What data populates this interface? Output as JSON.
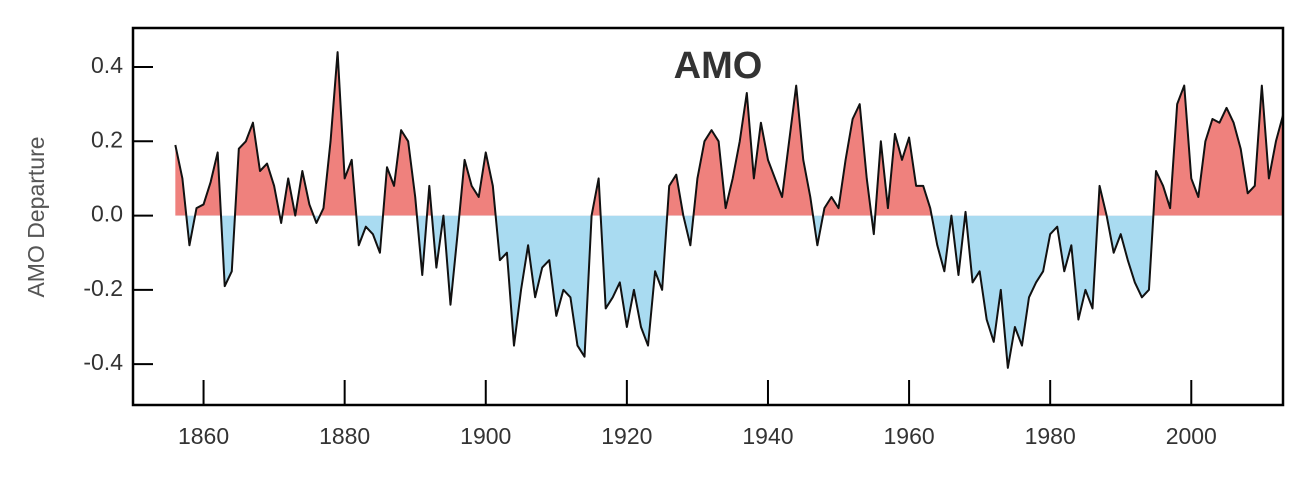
{
  "chart_data": {
    "type": "area",
    "title": "AMO",
    "y_label": "AMO Departure",
    "x": [
      1856,
      1857,
      1858,
      1859,
      1860,
      1861,
      1862,
      1863,
      1864,
      1865,
      1866,
      1867,
      1868,
      1869,
      1870,
      1871,
      1872,
      1873,
      1874,
      1875,
      1876,
      1877,
      1878,
      1879,
      1880,
      1881,
      1882,
      1883,
      1884,
      1885,
      1886,
      1887,
      1888,
      1889,
      1890,
      1891,
      1892,
      1893,
      1894,
      1895,
      1896,
      1897,
      1898,
      1899,
      1900,
      1901,
      1902,
      1903,
      1904,
      1905,
      1906,
      1907,
      1908,
      1909,
      1910,
      1911,
      1912,
      1913,
      1914,
      1915,
      1916,
      1917,
      1918,
      1919,
      1920,
      1921,
      1922,
      1923,
      1924,
      1925,
      1926,
      1927,
      1928,
      1929,
      1930,
      1931,
      1932,
      1933,
      1934,
      1935,
      1936,
      1937,
      1938,
      1939,
      1940,
      1941,
      1942,
      1943,
      1944,
      1945,
      1946,
      1947,
      1948,
      1949,
      1950,
      1951,
      1952,
      1953,
      1954,
      1955,
      1956,
      1957,
      1958,
      1959,
      1960,
      1961,
      1962,
      1963,
      1964,
      1965,
      1966,
      1967,
      1968,
      1969,
      1970,
      1971,
      1972,
      1973,
      1974,
      1975,
      1976,
      1977,
      1978,
      1979,
      1980,
      1981,
      1982,
      1983,
      1984,
      1985,
      1986,
      1987,
      1988,
      1989,
      1990,
      1991,
      1992,
      1993,
      1994,
      1995,
      1996,
      1997,
      1998,
      1999,
      2000,
      2001,
      2002,
      2003,
      2004,
      2005,
      2006,
      2007,
      2008,
      2009,
      2010,
      2011,
      2012,
      2013
    ],
    "values": [
      0.19,
      0.1,
      -0.08,
      0.02,
      0.03,
      0.09,
      0.17,
      -0.19,
      -0.15,
      0.18,
      0.2,
      0.25,
      0.12,
      0.14,
      0.08,
      -0.02,
      0.1,
      0.0,
      0.12,
      0.03,
      -0.02,
      0.02,
      0.2,
      0.44,
      0.1,
      0.15,
      -0.08,
      -0.03,
      -0.05,
      -0.1,
      0.13,
      0.08,
      0.23,
      0.2,
      0.05,
      -0.16,
      0.08,
      -0.14,
      0.0,
      -0.24,
      -0.05,
      0.15,
      0.08,
      0.05,
      0.17,
      0.08,
      -0.12,
      -0.1,
      -0.35,
      -0.2,
      -0.08,
      -0.22,
      -0.14,
      -0.12,
      -0.27,
      -0.2,
      -0.22,
      -0.35,
      -0.38,
      0.0,
      0.1,
      -0.25,
      -0.22,
      -0.18,
      -0.3,
      -0.2,
      -0.3,
      -0.35,
      -0.15,
      -0.2,
      0.08,
      0.11,
      0.0,
      -0.08,
      0.1,
      0.2,
      0.23,
      0.2,
      0.02,
      0.1,
      0.2,
      0.33,
      0.1,
      0.25,
      0.15,
      0.1,
      0.05,
      0.2,
      0.35,
      0.15,
      0.05,
      -0.08,
      0.02,
      0.05,
      0.02,
      0.15,
      0.26,
      0.3,
      0.1,
      -0.05,
      0.2,
      0.02,
      0.22,
      0.15,
      0.21,
      0.08,
      0.08,
      0.02,
      -0.08,
      -0.15,
      0.0,
      -0.16,
      0.01,
      -0.18,
      -0.15,
      -0.28,
      -0.34,
      -0.2,
      -0.41,
      -0.3,
      -0.35,
      -0.22,
      -0.18,
      -0.15,
      -0.05,
      -0.03,
      -0.15,
      -0.08,
      -0.28,
      -0.2,
      -0.25,
      0.08,
      0.0,
      -0.1,
      -0.05,
      -0.12,
      -0.18,
      -0.22,
      -0.2,
      0.12,
      0.08,
      0.02,
      0.3,
      0.35,
      0.1,
      0.05,
      0.2,
      0.26,
      0.25,
      0.29,
      0.25,
      0.18,
      0.06,
      0.08,
      0.35,
      0.1,
      0.2,
      0.27
    ],
    "positive_color": "#ef817d",
    "negative_color": "#a9dbf1",
    "line_color": "#111111",
    "xlim": [
      1850,
      2013
    ],
    "xticks": [
      1860,
      1880,
      1900,
      1920,
      1940,
      1960,
      1980,
      2000
    ],
    "ylim": [
      -0.51,
      0.505
    ],
    "yticks": [
      -0.4,
      -0.2,
      {
        "value": 0,
        "label": "0.0"
      },
      0.2,
      0.4
    ]
  }
}
